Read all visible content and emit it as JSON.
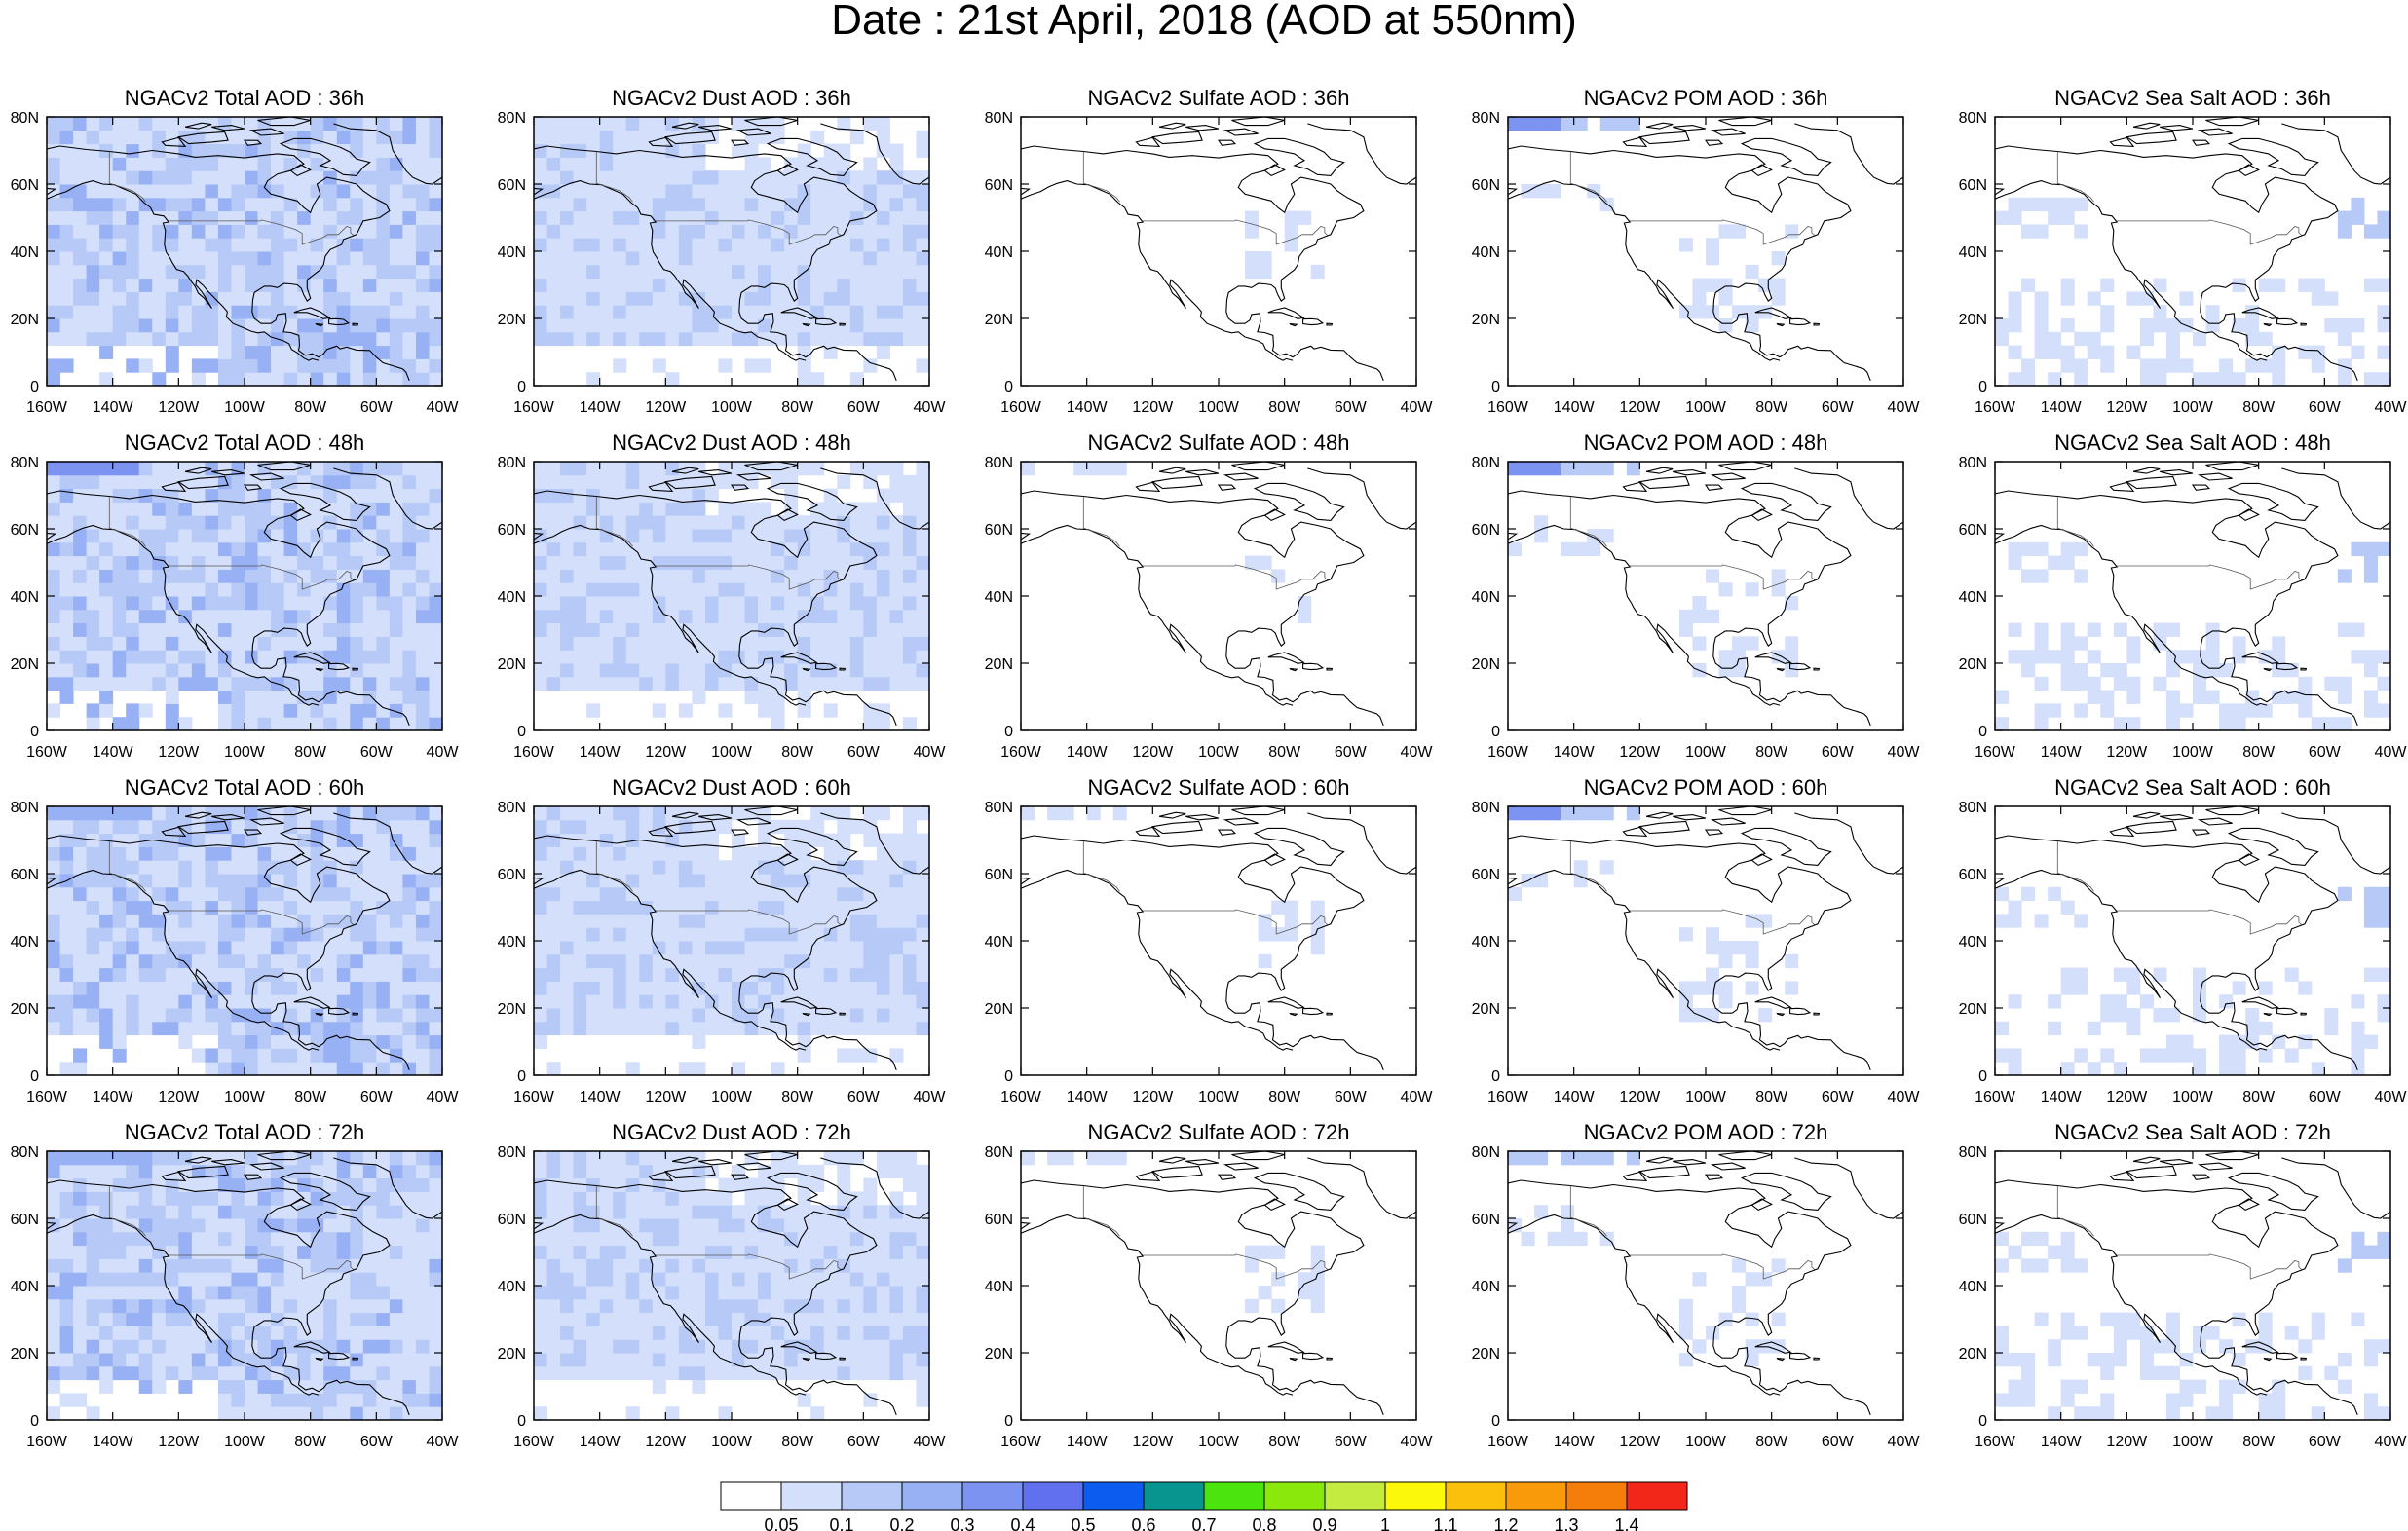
{
  "title": "Date : 21st April, 2018 (AOD at 550nm)",
  "panel_titles": [
    [
      "NGACv2 Total AOD : 36h",
      "NGACv2 Dust AOD : 36h",
      "NGACv2 Sulfate AOD : 36h",
      "NGACv2 POM AOD : 36h",
      "NGACv2 Sea Salt AOD : 36h"
    ],
    [
      "NGACv2 Total AOD : 48h",
      "NGACv2 Dust AOD : 48h",
      "NGACv2 Sulfate AOD : 48h",
      "NGACv2 POM AOD : 48h",
      "NGACv2 Sea Salt AOD : 48h"
    ],
    [
      "NGACv2 Total AOD : 60h",
      "NGACv2 Dust AOD : 60h",
      "NGACv2 Sulfate AOD : 60h",
      "NGACv2 POM AOD : 60h",
      "NGACv2 Sea Salt AOD : 60h"
    ],
    [
      "NGACv2 Total AOD : 72h",
      "NGACv2 Dust AOD : 72h",
      "NGACv2 Sulfate AOD : 72h",
      "NGACv2 POM AOD : 72h",
      "NGACv2 Sea Salt  AOD : 72h"
    ]
  ],
  "lon_ticks": [
    "160W",
    "140W",
    "120W",
    "100W",
    "80W",
    "60W",
    "40W"
  ],
  "lat_ticks": [
    "0",
    "20N",
    "40N",
    "60N",
    "80N"
  ],
  "colorbar": {
    "colors": [
      "#ffffff",
      "#d4e0fb",
      "#b6c9f7",
      "#98b1f5",
      "#7d93f2",
      "#6070ee",
      "#0d5cf0",
      "#08948f",
      "#4be40f",
      "#8ae80c",
      "#c4ec40",
      "#fbf80c",
      "#fbc00b",
      "#f99a0b",
      "#f57d0a",
      "#f2271a"
    ],
    "labels": [
      "0.05",
      "0.1",
      "0.2",
      "0.3",
      "0.4",
      "0.5",
      "0.6",
      "0.7",
      "0.8",
      "0.9",
      "1",
      "1.1",
      "1.2",
      "1.3",
      "1.4"
    ]
  }
}
